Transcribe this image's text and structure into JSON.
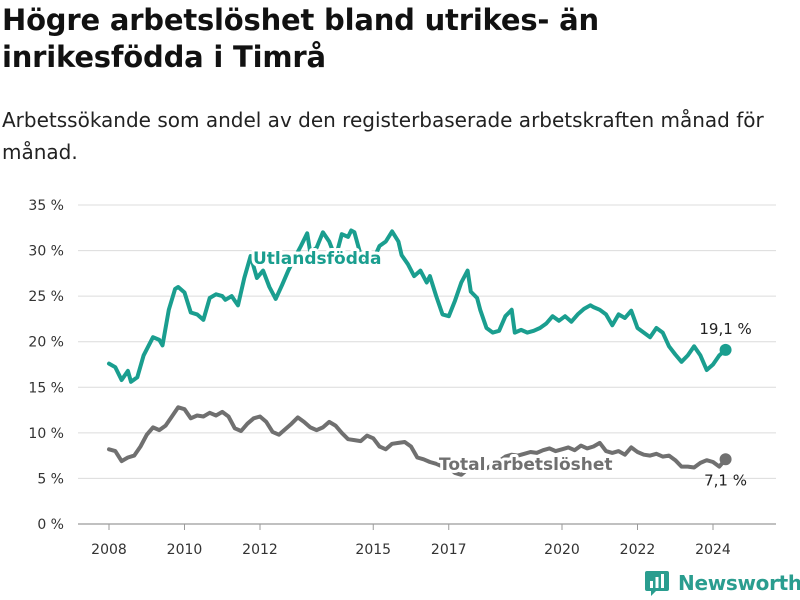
{
  "header": {
    "title": "Högre arbetslöshet bland utrikes- än inrikesfödda i Timrå",
    "subtitle": "Arbetssökande som andel av den registerbaserade arbetskraften månad för månad."
  },
  "brand": {
    "name": "Newsworthy",
    "icon": "bar-chart-logo-icon",
    "color": "#2a9d8f"
  },
  "chart_data": {
    "type": "line",
    "title": "Högre arbetslöshet bland utrikes- än inrikesfödda i Timrå",
    "subtitle": "Arbetssökande som andel av den registerbaserade arbetskraften månad för månad.",
    "ylim": [
      0,
      35
    ],
    "y_ticks": [
      0,
      5,
      10,
      15,
      20,
      25,
      30,
      35
    ],
    "y_tick_labels": [
      "0 %",
      "5 %",
      "10 %",
      "15 %",
      "20 %",
      "25 %",
      "30 %",
      "35 %"
    ],
    "x_ticks": [
      "2008-01",
      "2010-01",
      "2012-01",
      "2015-01",
      "2017-01",
      "2020-01",
      "2022-01",
      "2024-01"
    ],
    "x_tick_labels": [
      "2008",
      "2010",
      "2012",
      "2015",
      "2017",
      "2020",
      "2022",
      "2024"
    ],
    "grid": true,
    "series": [
      {
        "name": "Utlandsfödda",
        "color": "#1a9e8f",
        "end_label": "19,1 %",
        "points": [
          [
            "2008-01",
            17.6
          ],
          [
            "2008-03",
            17.2
          ],
          [
            "2008-05",
            15.8
          ],
          [
            "2008-07",
            16.8
          ],
          [
            "2008-08",
            15.6
          ],
          [
            "2008-10",
            16.1
          ],
          [
            "2008-12",
            18.5
          ],
          [
            "2009-03",
            20.5
          ],
          [
            "2009-05",
            20.2
          ],
          [
            "2009-06",
            19.6
          ],
          [
            "2009-08",
            23.5
          ],
          [
            "2009-10",
            25.8
          ],
          [
            "2009-11",
            26.0
          ],
          [
            "2010-01",
            25.4
          ],
          [
            "2010-03",
            23.2
          ],
          [
            "2010-05",
            23.0
          ],
          [
            "2010-07",
            22.4
          ],
          [
            "2010-09",
            24.8
          ],
          [
            "2010-11",
            25.2
          ],
          [
            "2011-01",
            25.0
          ],
          [
            "2011-02",
            24.6
          ],
          [
            "2011-04",
            25.0
          ],
          [
            "2011-05",
            24.5
          ],
          [
            "2011-06",
            24.0
          ],
          [
            "2011-08",
            27.0
          ],
          [
            "2011-10",
            29.4
          ],
          [
            "2011-12",
            27.0
          ],
          [
            "2012-02",
            27.8
          ],
          [
            "2012-04",
            26.0
          ],
          [
            "2012-06",
            24.7
          ],
          [
            "2012-08",
            26.2
          ],
          [
            "2012-10",
            27.8
          ],
          [
            "2012-12",
            29.2
          ],
          [
            "2013-02",
            30.5
          ],
          [
            "2013-04",
            31.9
          ],
          [
            "2013-05",
            29.8
          ],
          [
            "2013-07",
            30.3
          ],
          [
            "2013-09",
            32.0
          ],
          [
            "2013-11",
            31.0
          ],
          [
            "2014-01",
            29.2
          ],
          [
            "2014-03",
            31.8
          ],
          [
            "2014-05",
            31.5
          ],
          [
            "2014-06",
            32.2
          ],
          [
            "2014-07",
            32.0
          ],
          [
            "2014-09",
            29.5
          ],
          [
            "2014-11",
            28.5
          ],
          [
            "2015-01",
            29.0
          ],
          [
            "2015-03",
            30.5
          ],
          [
            "2015-05",
            31.0
          ],
          [
            "2015-07",
            32.1
          ],
          [
            "2015-09",
            31.0
          ],
          [
            "2015-10",
            29.5
          ],
          [
            "2015-12",
            28.5
          ],
          [
            "2016-02",
            27.2
          ],
          [
            "2016-04",
            27.8
          ],
          [
            "2016-06",
            26.5
          ],
          [
            "2016-07",
            27.2
          ],
          [
            "2016-09",
            25.0
          ],
          [
            "2016-11",
            23.0
          ],
          [
            "2017-01",
            22.8
          ],
          [
            "2017-03",
            24.5
          ],
          [
            "2017-05",
            26.5
          ],
          [
            "2017-07",
            27.8
          ],
          [
            "2017-08",
            25.5
          ],
          [
            "2017-10",
            24.8
          ],
          [
            "2017-11",
            23.5
          ],
          [
            "2018-01",
            21.5
          ],
          [
            "2018-03",
            21.0
          ],
          [
            "2018-05",
            21.2
          ],
          [
            "2018-07",
            22.8
          ],
          [
            "2018-09",
            23.5
          ],
          [
            "2018-10",
            21.0
          ],
          [
            "2018-12",
            21.3
          ],
          [
            "2019-02",
            21.0
          ],
          [
            "2019-04",
            21.2
          ],
          [
            "2019-06",
            21.5
          ],
          [
            "2019-08",
            22.0
          ],
          [
            "2019-10",
            22.8
          ],
          [
            "2019-12",
            22.3
          ],
          [
            "2020-02",
            22.8
          ],
          [
            "2020-04",
            22.2
          ],
          [
            "2020-06",
            23.0
          ],
          [
            "2020-08",
            23.6
          ],
          [
            "2020-10",
            24.0
          ],
          [
            "2020-11",
            23.8
          ],
          [
            "2021-01",
            23.5
          ],
          [
            "2021-03",
            23.0
          ],
          [
            "2021-05",
            21.8
          ],
          [
            "2021-07",
            23.0
          ],
          [
            "2021-09",
            22.6
          ],
          [
            "2021-11",
            23.4
          ],
          [
            "2022-01",
            21.5
          ],
          [
            "2022-03",
            21.0
          ],
          [
            "2022-05",
            20.5
          ],
          [
            "2022-07",
            21.5
          ],
          [
            "2022-09",
            21.0
          ],
          [
            "2022-11",
            19.5
          ],
          [
            "2023-01",
            18.6
          ],
          [
            "2023-03",
            17.8
          ],
          [
            "2023-05",
            18.5
          ],
          [
            "2023-07",
            19.5
          ],
          [
            "2023-09",
            18.5
          ],
          [
            "2023-11",
            16.9
          ],
          [
            "2024-01",
            17.5
          ],
          [
            "2024-03",
            18.5
          ],
          [
            "2024-05",
            19.1
          ]
        ]
      },
      {
        "name": "Total arbetslöshet",
        "color": "#707070",
        "end_label": "7,1 %",
        "points": [
          [
            "2008-01",
            8.2
          ],
          [
            "2008-03",
            8.0
          ],
          [
            "2008-05",
            6.9
          ],
          [
            "2008-07",
            7.3
          ],
          [
            "2008-09",
            7.5
          ],
          [
            "2008-11",
            8.5
          ],
          [
            "2009-01",
            9.8
          ],
          [
            "2009-03",
            10.6
          ],
          [
            "2009-05",
            10.3
          ],
          [
            "2009-07",
            10.8
          ],
          [
            "2009-09",
            11.8
          ],
          [
            "2009-11",
            12.8
          ],
          [
            "2010-01",
            12.6
          ],
          [
            "2010-03",
            11.6
          ],
          [
            "2010-05",
            11.9
          ],
          [
            "2010-07",
            11.8
          ],
          [
            "2010-09",
            12.2
          ],
          [
            "2010-11",
            11.9
          ],
          [
            "2011-01",
            12.3
          ],
          [
            "2011-03",
            11.8
          ],
          [
            "2011-05",
            10.5
          ],
          [
            "2011-07",
            10.2
          ],
          [
            "2011-09",
            11.0
          ],
          [
            "2011-11",
            11.6
          ],
          [
            "2012-01",
            11.8
          ],
          [
            "2012-03",
            11.2
          ],
          [
            "2012-05",
            10.1
          ],
          [
            "2012-07",
            9.8
          ],
          [
            "2012-09",
            10.4
          ],
          [
            "2012-11",
            11.0
          ],
          [
            "2013-01",
            11.7
          ],
          [
            "2013-03",
            11.2
          ],
          [
            "2013-05",
            10.6
          ],
          [
            "2013-07",
            10.3
          ],
          [
            "2013-09",
            10.6
          ],
          [
            "2013-11",
            11.2
          ],
          [
            "2014-01",
            10.8
          ],
          [
            "2014-03",
            10.0
          ],
          [
            "2014-05",
            9.3
          ],
          [
            "2014-07",
            9.2
          ],
          [
            "2014-09",
            9.1
          ],
          [
            "2014-11",
            9.7
          ],
          [
            "2015-01",
            9.4
          ],
          [
            "2015-03",
            8.5
          ],
          [
            "2015-05",
            8.2
          ],
          [
            "2015-07",
            8.8
          ],
          [
            "2015-09",
            8.9
          ],
          [
            "2015-11",
            9.0
          ],
          [
            "2016-01",
            8.5
          ],
          [
            "2016-03",
            7.3
          ],
          [
            "2016-05",
            7.1
          ],
          [
            "2016-07",
            6.8
          ],
          [
            "2016-09",
            6.6
          ],
          [
            "2016-11",
            6.3
          ],
          [
            "2017-01",
            6.2
          ],
          [
            "2017-03",
            5.6
          ],
          [
            "2017-05",
            5.4
          ],
          [
            "2017-07",
            6.0
          ],
          [
            "2017-09",
            6.2
          ],
          [
            "2017-11",
            5.9
          ],
          [
            "2018-01",
            6.1
          ],
          [
            "2018-03",
            6.5
          ],
          [
            "2018-05",
            6.9
          ],
          [
            "2018-07",
            7.4
          ],
          [
            "2018-09",
            7.6
          ],
          [
            "2018-11",
            7.5
          ],
          [
            "2019-01",
            7.7
          ],
          [
            "2019-03",
            7.9
          ],
          [
            "2019-05",
            7.8
          ],
          [
            "2019-07",
            8.1
          ],
          [
            "2019-09",
            8.3
          ],
          [
            "2019-11",
            8.0
          ],
          [
            "2020-01",
            8.2
          ],
          [
            "2020-03",
            8.4
          ],
          [
            "2020-05",
            8.1
          ],
          [
            "2020-07",
            8.6
          ],
          [
            "2020-09",
            8.3
          ],
          [
            "2020-11",
            8.5
          ],
          [
            "2021-01",
            8.9
          ],
          [
            "2021-03",
            8.0
          ],
          [
            "2021-05",
            7.8
          ],
          [
            "2021-07",
            8.0
          ],
          [
            "2021-09",
            7.6
          ],
          [
            "2021-11",
            8.4
          ],
          [
            "2022-01",
            7.9
          ],
          [
            "2022-03",
            7.6
          ],
          [
            "2022-05",
            7.5
          ],
          [
            "2022-07",
            7.7
          ],
          [
            "2022-09",
            7.4
          ],
          [
            "2022-11",
            7.5
          ],
          [
            "2023-01",
            7.0
          ],
          [
            "2023-03",
            6.3
          ],
          [
            "2023-05",
            6.3
          ],
          [
            "2023-07",
            6.2
          ],
          [
            "2023-09",
            6.7
          ],
          [
            "2023-11",
            7.0
          ],
          [
            "2024-01",
            6.8
          ],
          [
            "2024-03",
            6.3
          ],
          [
            "2024-05",
            7.1
          ]
        ]
      }
    ]
  }
}
